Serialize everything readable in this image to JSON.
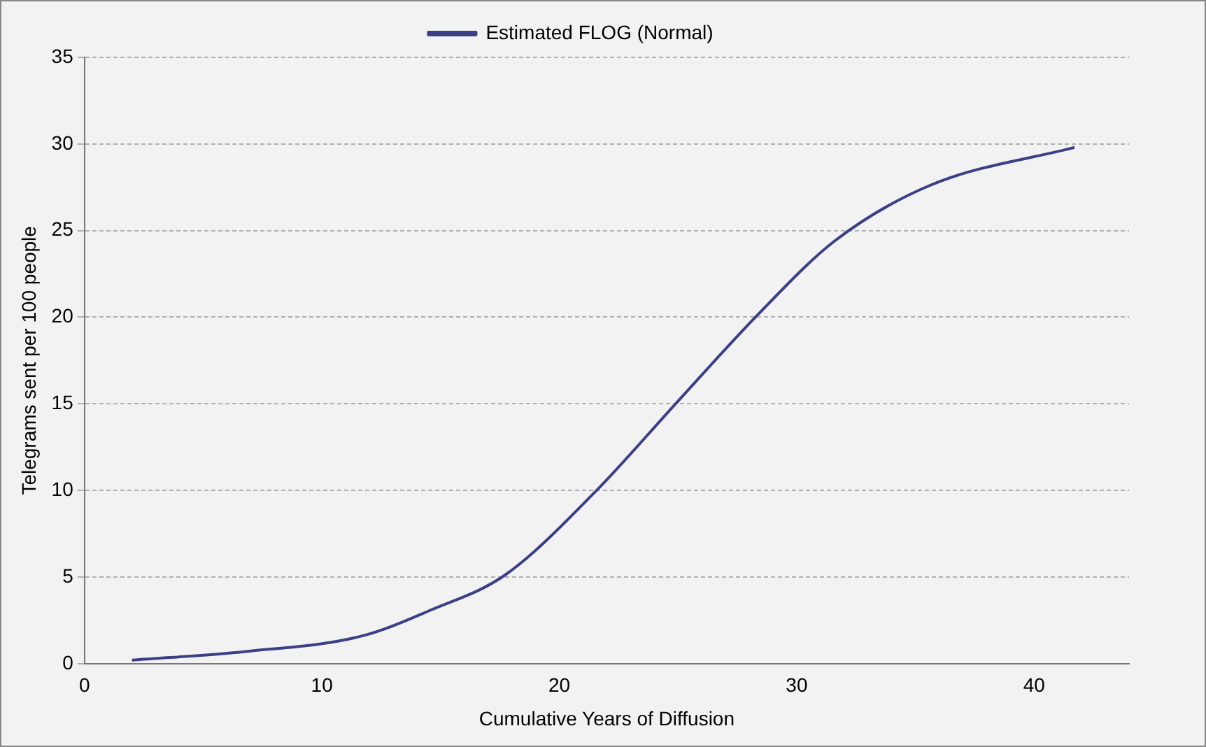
{
  "chart_data": {
    "type": "line",
    "xlabel": "Cumulative Years of Diffusion",
    "ylabel": "Telegrams sent per 100 people",
    "x": [
      2,
      6.8,
      11.7,
      14.6,
      17.7,
      21.5,
      24.9,
      28.4,
      31.6,
      35.6,
      41.7
    ],
    "series": [
      {
        "name": "Estimated FLOG (Normal)",
        "color": "#3b3f86",
        "values": [
          0.2,
          0.7,
          1.6,
          3.1,
          5.1,
          9.9,
          15,
          20.2,
          24.4,
          27.6,
          29.8
        ]
      }
    ],
    "xlim": [
      0,
      44
    ],
    "xticks": [
      0,
      10,
      20,
      30,
      40
    ],
    "ylim": [
      0,
      35
    ],
    "yticks": [
      0,
      5,
      10,
      15,
      20,
      25,
      30,
      35
    ],
    "grid": "y",
    "legend": "top",
    "marker": "none",
    "line_style": "solid"
  }
}
